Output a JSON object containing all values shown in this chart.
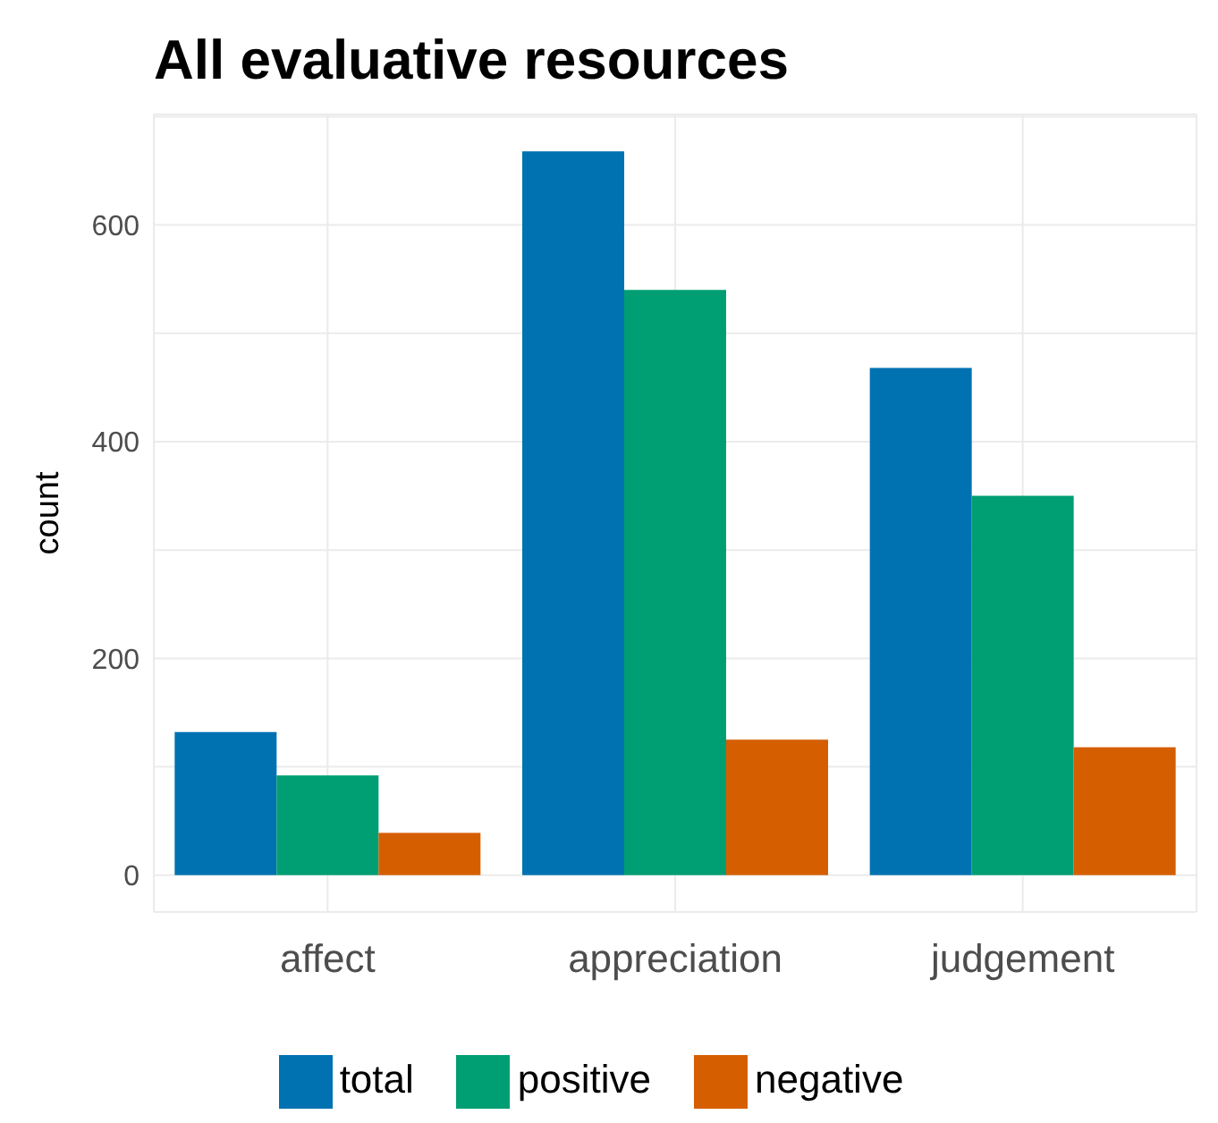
{
  "chart_data": {
    "type": "bar",
    "title": "All evaluative resources",
    "ylabel": "count",
    "categories": [
      "affect",
      "appreciation",
      "judgement"
    ],
    "series": [
      {
        "name": "total",
        "color": "#0072b2",
        "values": [
          132,
          668,
          468
        ]
      },
      {
        "name": "positive",
        "color": "#009e73",
        "values": [
          92,
          540,
          350
        ]
      },
      {
        "name": "negative",
        "color": "#d55e00",
        "values": [
          39,
          125,
          118
        ]
      }
    ],
    "ylim": [
      -34,
      702
    ],
    "yticks": [
      0,
      {
        "value": 100,
        "label": null
      },
      200,
      {
        "value": 300,
        "label": null
      },
      400,
      {
        "value": 500,
        "label": null
      },
      600,
      {
        "value": 700,
        "label": null
      }
    ],
    "grid": true,
    "legend": "bottom"
  }
}
